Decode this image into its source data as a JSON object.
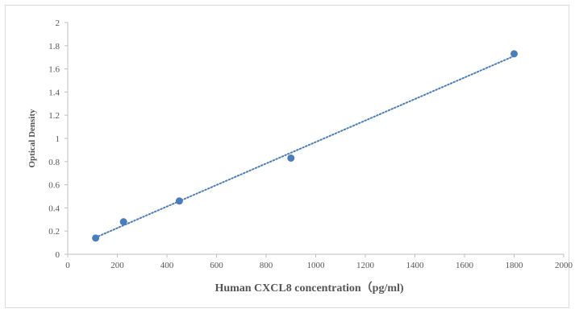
{
  "chart_data": {
    "type": "scatter",
    "title": "",
    "xlabel": "Human CXCL8 concentration（pg/ml)",
    "ylabel": "Optical Density",
    "xlim": [
      0,
      2000
    ],
    "ylim": [
      0,
      2
    ],
    "x_ticks": [
      "0",
      "200",
      "400",
      "600",
      "800",
      "1000",
      "1200",
      "1400",
      "1600",
      "1800",
      "2000"
    ],
    "y_ticks": [
      "0",
      "0.2",
      "0.4",
      "0.6",
      "0.8",
      "1",
      "1.2",
      "1.4",
      "1.6",
      "1.8",
      "2"
    ],
    "grid": false,
    "legend": "none",
    "marker_color": "#4a7ebb",
    "trendline": {
      "type": "linear",
      "style": "dotted",
      "color": "#4a7ebb"
    },
    "series": [
      {
        "x": [
          112.5,
          225,
          450,
          900,
          1800
        ],
        "y": [
          0.14,
          0.28,
          0.46,
          0.83,
          1.73
        ]
      }
    ]
  }
}
